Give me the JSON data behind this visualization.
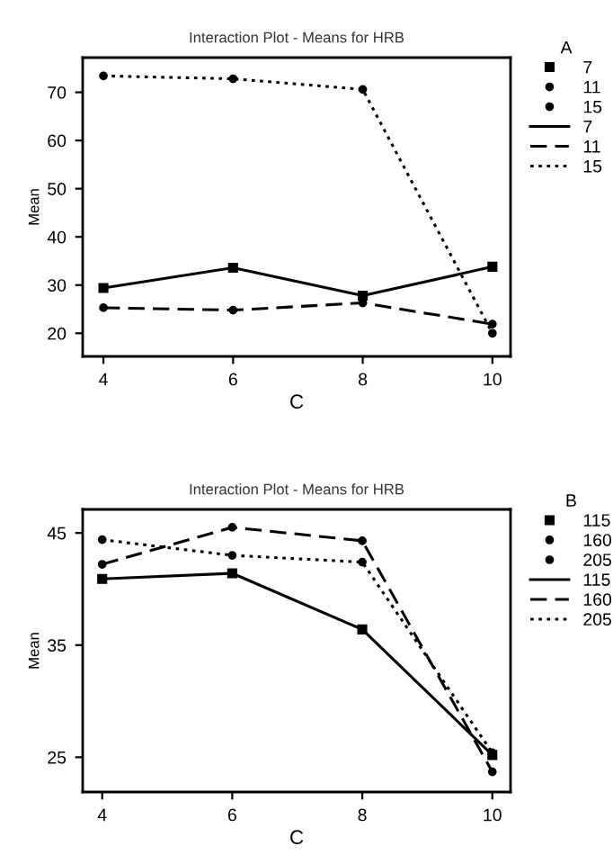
{
  "chart_data": [
    {
      "type": "line",
      "title": "Interaction Plot - Means for HRB",
      "xlabel": "C",
      "ylabel": "Mean",
      "legend_title": "A",
      "x": [
        4,
        6,
        8,
        10
      ],
      "xlim": [
        3.68,
        10.28
      ],
      "xticks": [
        4,
        6,
        8,
        10
      ],
      "ylim": [
        15.2,
        77.2
      ],
      "yticks": [
        20,
        30,
        40,
        50,
        60,
        70
      ],
      "grid": false,
      "legend": "right",
      "series": [
        {
          "name": "7",
          "color": "#000000",
          "marker": "square",
          "line_style": "solid",
          "values": [
            29.4,
            33.6,
            27.8,
            33.8
          ]
        },
        {
          "name": "11",
          "color": "#000000",
          "marker": "circle",
          "line_style": "dashed",
          "values": [
            25.3,
            24.8,
            26.3,
            21.9
          ]
        },
        {
          "name": "15",
          "color": "#000000",
          "marker": "circle",
          "line_style": "dotted",
          "values": [
            73.4,
            72.8,
            70.6,
            20.0
          ]
        }
      ]
    },
    {
      "type": "line",
      "title": "Interaction Plot - Means for HRB",
      "xlabel": "C",
      "ylabel": "Mean",
      "legend_title": "B",
      "x": [
        4,
        6,
        8,
        10
      ],
      "xlim": [
        3.7,
        10.28
      ],
      "xticks": [
        4,
        6,
        8,
        10
      ],
      "ylim": [
        21.9,
        47.1
      ],
      "yticks": [
        25,
        35,
        45
      ],
      "grid": false,
      "legend": "right",
      "series": [
        {
          "name": "115",
          "color": "#000000",
          "marker": "square",
          "line_style": "solid",
          "values": [
            40.9,
            41.4,
            36.4,
            25.2
          ]
        },
        {
          "name": "160",
          "color": "#000000",
          "marker": "circle",
          "line_style": "dashed",
          "values": [
            42.2,
            45.5,
            44.3,
            23.7
          ]
        },
        {
          "name": "205",
          "color": "#000000",
          "marker": "circle",
          "line_style": "dotted",
          "values": [
            44.4,
            43.0,
            42.4,
            25.4
          ]
        }
      ]
    }
  ]
}
